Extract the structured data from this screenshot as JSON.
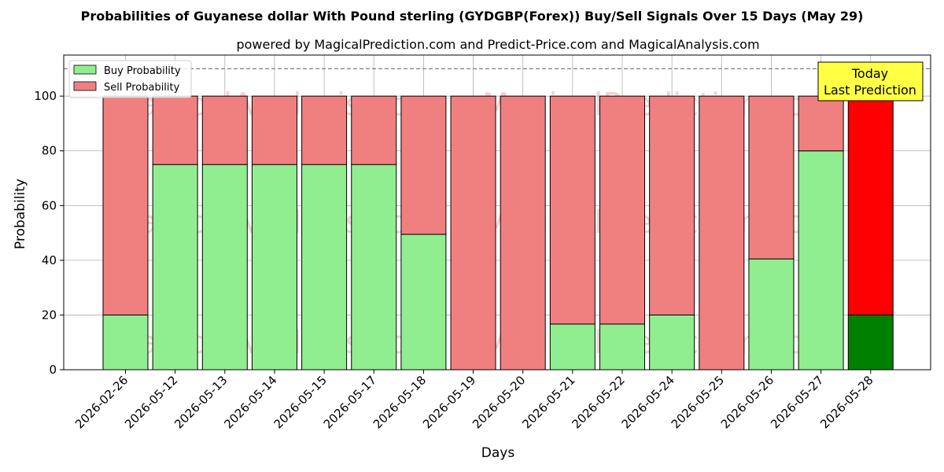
{
  "chart_data": {
    "type": "bar",
    "stacked": true,
    "title": "Probabilities of Guyanese dollar With Pound sterling (GYDGBP(Forex)) Buy/Sell Signals Over 15 Days (May 29)",
    "subtitle": "powered by MagicalPrediction.com and Predict-Price.com and MagicalAnalysis.com",
    "xlabel": "Days",
    "ylabel": "Probability",
    "ylim": [
      0,
      115
    ],
    "yticks": [
      0,
      20,
      40,
      60,
      80,
      100
    ],
    "grid": true,
    "legend_position": "top-left",
    "reference_line": 110,
    "categories": [
      "2026-02-26",
      "2026-05-12",
      "2026-05-13",
      "2026-05-14",
      "2026-05-15",
      "2026-05-17",
      "2026-05-18",
      "2026-05-19",
      "2026-05-20",
      "2026-05-21",
      "2026-05-22",
      "2026-05-24",
      "2026-05-25",
      "2026-05-26",
      "2026-05-27",
      "2026-05-28"
    ],
    "series": [
      {
        "name": "Buy Probability",
        "color": "#90ee90",
        "highlight_color": "#008000",
        "values": [
          20,
          75,
          75,
          75,
          75,
          75,
          49.5,
          0,
          0,
          16.7,
          16.7,
          20,
          0,
          40.5,
          80,
          20
        ]
      },
      {
        "name": "Sell Probability",
        "color": "#f08080",
        "highlight_color": "#ff0000",
        "values": [
          80,
          25,
          25,
          25,
          25,
          25,
          50.5,
          100,
          100,
          83.3,
          83.3,
          80,
          100,
          59.5,
          20,
          80
        ]
      }
    ],
    "highlight_index": 15,
    "annotation": {
      "line1": "Today",
      "line2": "Last Prediction",
      "bg": "#ffff44"
    },
    "watermarks": [
      "MagicalAnalysis.com",
      "MagicalPrediction.com"
    ]
  }
}
